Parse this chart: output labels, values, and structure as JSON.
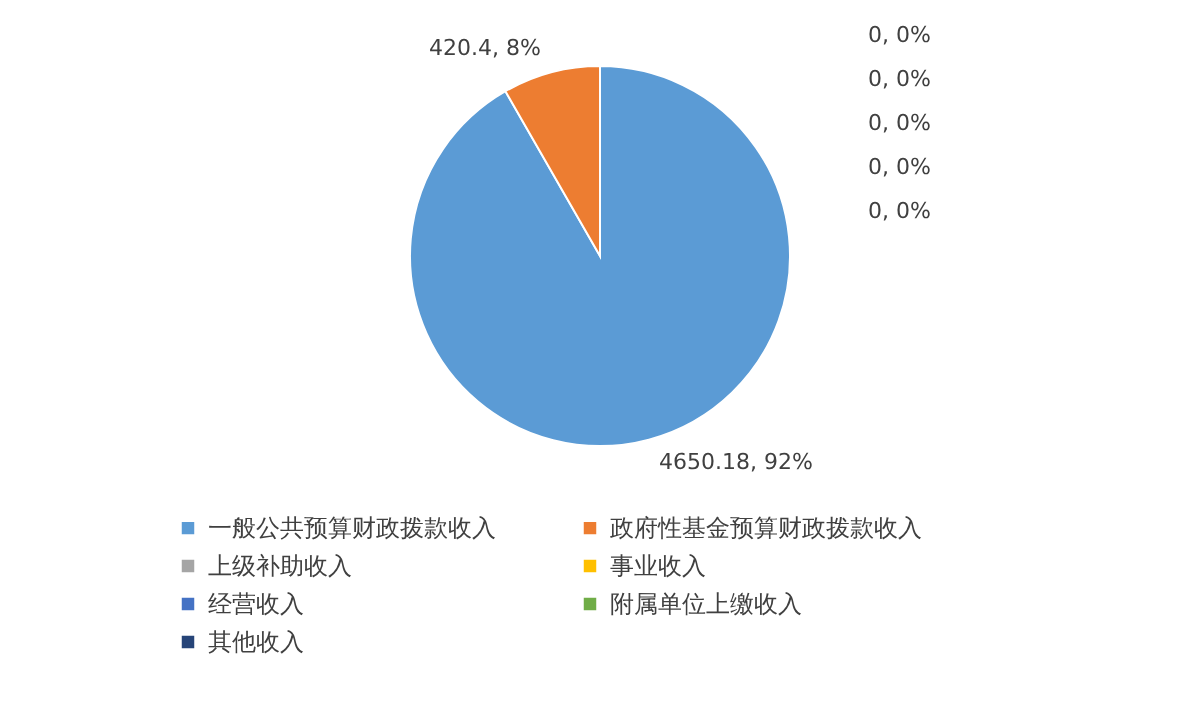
{
  "chart_data": {
    "type": "pie",
    "categories": [
      "一般公共预算财政拨款收入",
      "政府性基金预算财政拨款收入",
      "上级补助收入",
      "事业收入",
      "经营收入",
      "附属单位上缴收入",
      "其他收入"
    ],
    "values": [
      4650.18,
      420.4,
      0,
      0,
      0,
      0,
      0
    ],
    "colors": [
      "#5b9bd5",
      "#ed7d31",
      "#a5a5a5",
      "#ffc000",
      "#4472c4",
      "#70ad47",
      "#264478"
    ],
    "value_labels": [
      "4650.18, 92%",
      "420.4, 8%",
      "0, 0%",
      "0, 0%",
      "0, 0%",
      "0, 0%",
      "0, 0%"
    ],
    "legend": "bottom"
  }
}
